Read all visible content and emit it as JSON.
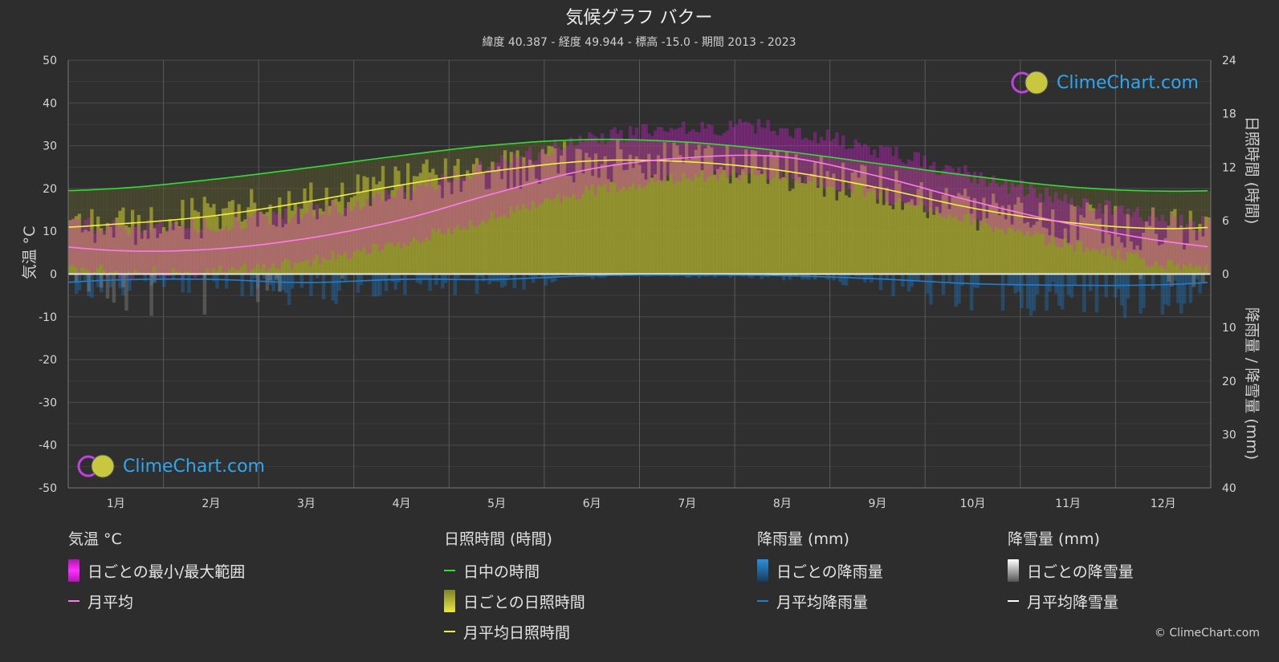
{
  "title": "気候グラフ バクー",
  "subtitle": "緯度 40.387 - 経度 49.944 - 標高 -15.0 - 期間 2013 - 2023",
  "axes": {
    "left_label": "気温 °C",
    "right_top_label": "日照時間 (時間)",
    "right_bottom_label": "降雨量 / 降雪量 (mm)"
  },
  "brand": {
    "logo_text": "ClimeChart.com",
    "copyright": "© ClimeChart.com"
  },
  "legend": {
    "temp": {
      "heading": "気温 °C",
      "range": "日ごとの最小/最大範囲",
      "avg": "月平均"
    },
    "sun": {
      "heading": "日照時間 (時間)",
      "daylight": "日中の時間",
      "daily": "日ごとの日照時間",
      "avg": "月平均日照時間"
    },
    "rain": {
      "heading": "降雨量 (mm)",
      "daily": "日ごとの降雨量",
      "avg": "月平均降雨量"
    },
    "snow": {
      "heading": "降雪量 (mm)",
      "daily": "日ごとの降雪量",
      "avg": "月平均降雪量"
    }
  },
  "colors": {
    "background": "#2d2d2d",
    "temp_range": "#e020e0",
    "temp_avg": "#ff7af0",
    "daylight": "#33dd33",
    "sunshine_fill": "#a8a830",
    "sunshine_avg": "#f0f040",
    "rain": "#1e7fd0",
    "snow": "#ffffff"
  },
  "chart_data": {
    "type": "area",
    "categories": [
      "1月",
      "2月",
      "3月",
      "4月",
      "5月",
      "6月",
      "7月",
      "8月",
      "9月",
      "10月",
      "11月",
      "12月"
    ],
    "y_left": {
      "label": "気温 °C",
      "range": [
        -50,
        50
      ],
      "ticks": [
        50,
        40,
        30,
        20,
        10,
        0,
        -10,
        -20,
        -30,
        -40,
        -50
      ]
    },
    "y_right_top": {
      "label": "日照時間 (時間)",
      "range": [
        0,
        24
      ],
      "ticks": [
        24,
        18,
        12,
        6,
        0
      ]
    },
    "y_right_bottom": {
      "label": "降雨量 / 降雪量 (mm)",
      "range": [
        0,
        40
      ],
      "ticks": [
        0,
        10,
        20,
        30,
        40
      ]
    },
    "grid": true,
    "series": [
      {
        "name": "日中の時間",
        "axis": "hours",
        "values": [
          9.6,
          10.6,
          11.9,
          13.3,
          14.5,
          15.1,
          14.8,
          13.8,
          12.4,
          11.0,
          9.8,
          9.3
        ]
      },
      {
        "name": "月平均日照時間",
        "axis": "hours",
        "values": [
          5.6,
          6.5,
          8.1,
          10.0,
          11.6,
          12.7,
          12.6,
          11.6,
          9.7,
          7.4,
          5.8,
          5.1
        ]
      },
      {
        "name": "月平均",
        "axis": "temp",
        "values": [
          5.5,
          5.8,
          8.3,
          12.7,
          19.0,
          24.6,
          27.2,
          27.4,
          22.9,
          17.0,
          11.8,
          7.7
        ]
      },
      {
        "name": "日ごとの最小/最大範囲 (最小)",
        "axis": "temp",
        "values": [
          2.0,
          2.0,
          4.5,
          9.0,
          15.0,
          21.0,
          24.0,
          24.5,
          20.0,
          14.0,
          8.5,
          4.0
        ]
      },
      {
        "name": "日ごとの最小/最大範囲 (最大)",
        "axis": "temp",
        "values": [
          9.0,
          9.5,
          12.5,
          17.0,
          24.0,
          29.5,
          32.0,
          32.0,
          27.0,
          21.0,
          15.5,
          11.0
        ]
      },
      {
        "name": "月平均降雨量",
        "axis": "precip",
        "values": [
          1.1,
          1.0,
          1.6,
          1.0,
          1.0,
          0.3,
          0.2,
          0.3,
          0.9,
          1.8,
          2.1,
          2.0
        ]
      },
      {
        "name": "月平均降雪量",
        "axis": "precip",
        "values": [
          0.3,
          0.3,
          0.1,
          0,
          0,
          0,
          0,
          0,
          0,
          0,
          0,
          0.1
        ]
      }
    ]
  }
}
